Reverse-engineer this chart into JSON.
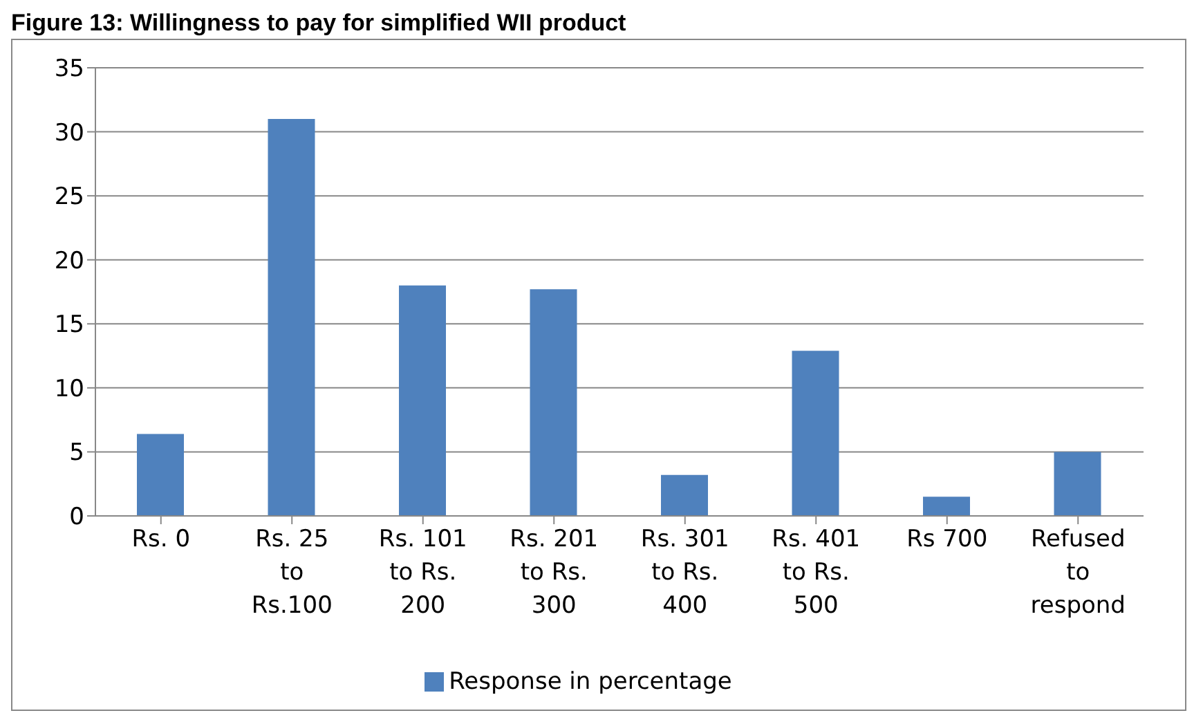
{
  "chart_data": {
    "type": "bar",
    "title": "Figure 13: Willingness to pay for simplified WII product",
    "categories": [
      "Rs. 0",
      "Rs. 25 to Rs.100",
      "Rs. 101 to Rs. 200",
      "Rs. 201 to Rs. 300",
      "Rs. 301 to Rs. 400",
      "Rs. 401 to Rs. 500",
      "Rs 700",
      "Refused to respond"
    ],
    "series": [
      {
        "name": "Response in percentage",
        "color": "#4f81bd",
        "values": [
          6.4,
          31,
          18,
          17.7,
          3.2,
          12.9,
          1.5,
          5
        ]
      }
    ],
    "ylim": [
      0,
      35
    ],
    "yticks": [
      0,
      5,
      10,
      15,
      20,
      25,
      30,
      35
    ],
    "grid": "y",
    "legend": "bottom"
  }
}
